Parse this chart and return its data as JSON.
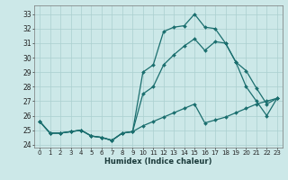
{
  "xlabel": "Humidex (Indice chaleur)",
  "background_color": "#cce8e8",
  "grid_color": "#aacfcf",
  "line_color": "#1a6e6e",
  "xlim": [
    -0.5,
    23.5
  ],
  "ylim": [
    23.8,
    33.6
  ],
  "yticks": [
    24,
    25,
    26,
    27,
    28,
    29,
    30,
    31,
    32,
    33
  ],
  "xticks": [
    0,
    1,
    2,
    3,
    4,
    5,
    6,
    7,
    8,
    9,
    10,
    11,
    12,
    13,
    14,
    15,
    16,
    17,
    18,
    19,
    20,
    21,
    22,
    23
  ],
  "series": [
    [
      25.6,
      24.8,
      24.8,
      24.9,
      25.0,
      24.6,
      24.5,
      24.3,
      24.8,
      24.9,
      29.0,
      29.5,
      31.8,
      32.1,
      32.2,
      33.0,
      32.1,
      32.0,
      31.0,
      29.7,
      29.1,
      27.9,
      26.8,
      27.2
    ],
    [
      25.6,
      24.8,
      24.8,
      24.9,
      25.0,
      24.6,
      24.5,
      24.3,
      24.8,
      24.9,
      27.5,
      28.0,
      29.5,
      30.2,
      30.8,
      31.3,
      30.5,
      31.1,
      31.0,
      29.7,
      28.0,
      27.0,
      26.0,
      27.2
    ],
    [
      25.6,
      24.8,
      24.8,
      24.9,
      25.0,
      24.6,
      24.5,
      24.3,
      24.8,
      24.9,
      25.3,
      25.6,
      25.9,
      26.2,
      26.5,
      26.8,
      25.5,
      25.7,
      25.9,
      26.2,
      26.5,
      26.8,
      27.0,
      27.2
    ]
  ]
}
